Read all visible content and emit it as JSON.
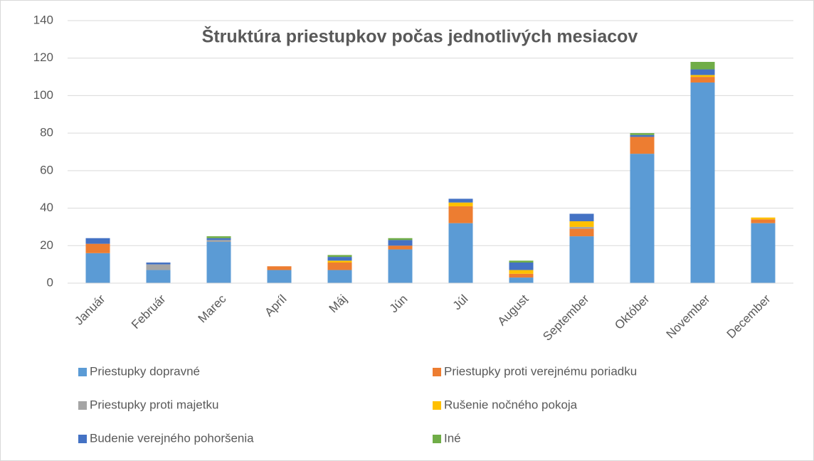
{
  "chart_data": {
    "type": "stacked_bar",
    "title": "Štruktúra priestupkov počas jednotlivých mesiacov",
    "categories": [
      "Január",
      "Február",
      "Marec",
      "Apríl",
      "Máj",
      "Jún",
      "Júl",
      "August",
      "September",
      "Október",
      "November",
      "December"
    ],
    "series": [
      {
        "name": "Priestupky dopravné",
        "color": "#5b9bd5",
        "values": [
          16,
          7,
          22,
          7,
          7,
          18,
          32,
          3,
          25,
          69,
          107,
          32
        ]
      },
      {
        "name": "Priestupky proti verejnému poriadku",
        "color": "#ed7d31",
        "values": [
          5,
          0,
          0,
          2,
          4,
          2,
          9,
          2,
          4,
          9,
          3,
          2
        ]
      },
      {
        "name": "Priestupky proti majetku",
        "color": "#a5a5a5",
        "values": [
          0,
          3,
          1,
          0,
          0,
          0,
          0,
          0,
          1,
          0,
          0,
          0
        ]
      },
      {
        "name": "Rušenie nočného pokoja",
        "color": "#ffc000",
        "values": [
          0,
          0,
          0,
          0,
          1,
          0,
          2,
          2,
          3,
          0,
          1,
          1
        ]
      },
      {
        "name": "Budenie verejného pohoršenia",
        "color": "#4472c4",
        "values": [
          3,
          1,
          1,
          0,
          2,
          3,
          2,
          4,
          4,
          1,
          3,
          0
        ]
      },
      {
        "name": "Iné",
        "color": "#70ad47",
        "values": [
          0,
          0,
          1,
          0,
          1,
          1,
          0,
          1,
          0,
          1,
          4,
          0
        ]
      }
    ],
    "ylim": [
      0,
      140
    ],
    "yticks": [
      0,
      20,
      40,
      60,
      80,
      100,
      120,
      140
    ],
    "grid": true,
    "legend": "bottom"
  }
}
